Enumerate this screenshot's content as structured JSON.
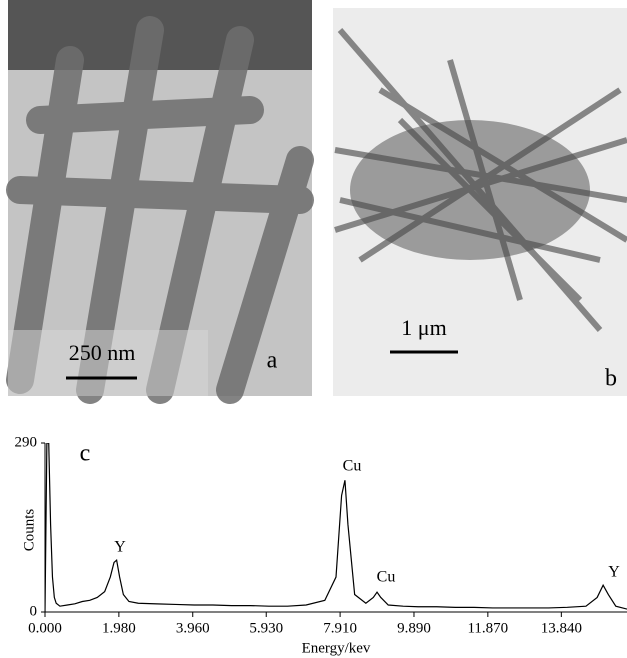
{
  "panels": [
    {
      "scale_label": "250 nm",
      "letter": "a"
    },
    {
      "scale_label": "1 μm",
      "letter": "b"
    }
  ],
  "chart_data": {
    "type": "line",
    "panel_letter": "c",
    "x_label": "Energy/kev",
    "y_label": "Counts",
    "color": "#000000",
    "annotations": [
      "Y",
      "Cu",
      "Cu",
      "Y"
    ],
    "xlim": [
      0,
      15.6
    ],
    "ylim": [
      0,
      290
    ],
    "xticks": [
      {
        "value": 0,
        "label": "0.000"
      },
      {
        "value": 1.98,
        "label": "1.980"
      },
      {
        "value": 3.96,
        "label": "3.960"
      },
      {
        "value": 5.93,
        "label": "5.930"
      },
      {
        "value": 7.91,
        "label": "7.910"
      },
      {
        "value": 9.89,
        "label": "9.890"
      },
      {
        "value": 11.87,
        "label": "11.870"
      },
      {
        "value": 13.84,
        "label": "13.840"
      }
    ],
    "yticks": [
      0,
      290
    ],
    "x": [
      0,
      0.05,
      0.1,
      0.15,
      0.2,
      0.25,
      0.3,
      0.4,
      0.6,
      0.8,
      1.0,
      1.2,
      1.4,
      1.6,
      1.75,
      1.85,
      1.92,
      2.0,
      2.1,
      2.25,
      2.5,
      3.0,
      3.5,
      4.0,
      4.5,
      5.0,
      5.5,
      6.0,
      6.5,
      7.0,
      7.5,
      7.8,
      7.95,
      8.04,
      8.12,
      8.3,
      8.6,
      8.8,
      8.9,
      9.0,
      9.2,
      9.6,
      10.0,
      10.5,
      11.0,
      11.5,
      12.0,
      12.5,
      13.0,
      13.5,
      14.0,
      14.5,
      14.8,
      14.96,
      15.1,
      15.3,
      15.6
    ],
    "values": [
      0,
      290,
      290,
      150,
      60,
      25,
      15,
      10,
      12,
      14,
      18,
      20,
      25,
      35,
      60,
      85,
      89,
      60,
      30,
      18,
      15,
      14,
      13,
      12,
      12,
      11,
      11,
      10,
      10,
      12,
      20,
      60,
      200,
      226,
      150,
      30,
      15,
      25,
      34,
      25,
      12,
      10,
      9,
      9,
      8,
      8,
      7,
      7,
      7,
      7,
      8,
      10,
      25,
      46,
      30,
      10,
      5
    ]
  }
}
